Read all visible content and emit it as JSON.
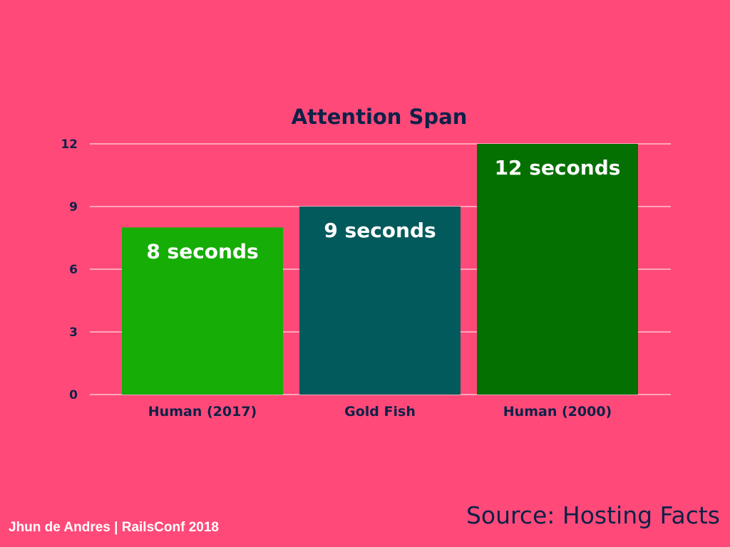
{
  "colors": {
    "background": "#ff4a79",
    "text_dark": "#0e2148",
    "gridline": "#ffffff",
    "bar_colors": [
      "#17ad07",
      "#025a5c",
      "#047001"
    ]
  },
  "chart_data": {
    "type": "bar",
    "title": "Attention Span",
    "xlabel": "",
    "ylabel": "",
    "categories": [
      "Human (2017)",
      "Gold Fish",
      "Human (2000)"
    ],
    "values": [
      8,
      9,
      12
    ],
    "data_labels": [
      "8 seconds",
      "9 seconds",
      "12 seconds"
    ],
    "ylim": [
      0,
      12
    ],
    "yticks": [
      0,
      3,
      6,
      9,
      12
    ],
    "grid": true,
    "legend": "none"
  },
  "footer": {
    "author": "Jhun de Andres | RailsConf 2018",
    "source": "Source: Hosting Facts"
  }
}
